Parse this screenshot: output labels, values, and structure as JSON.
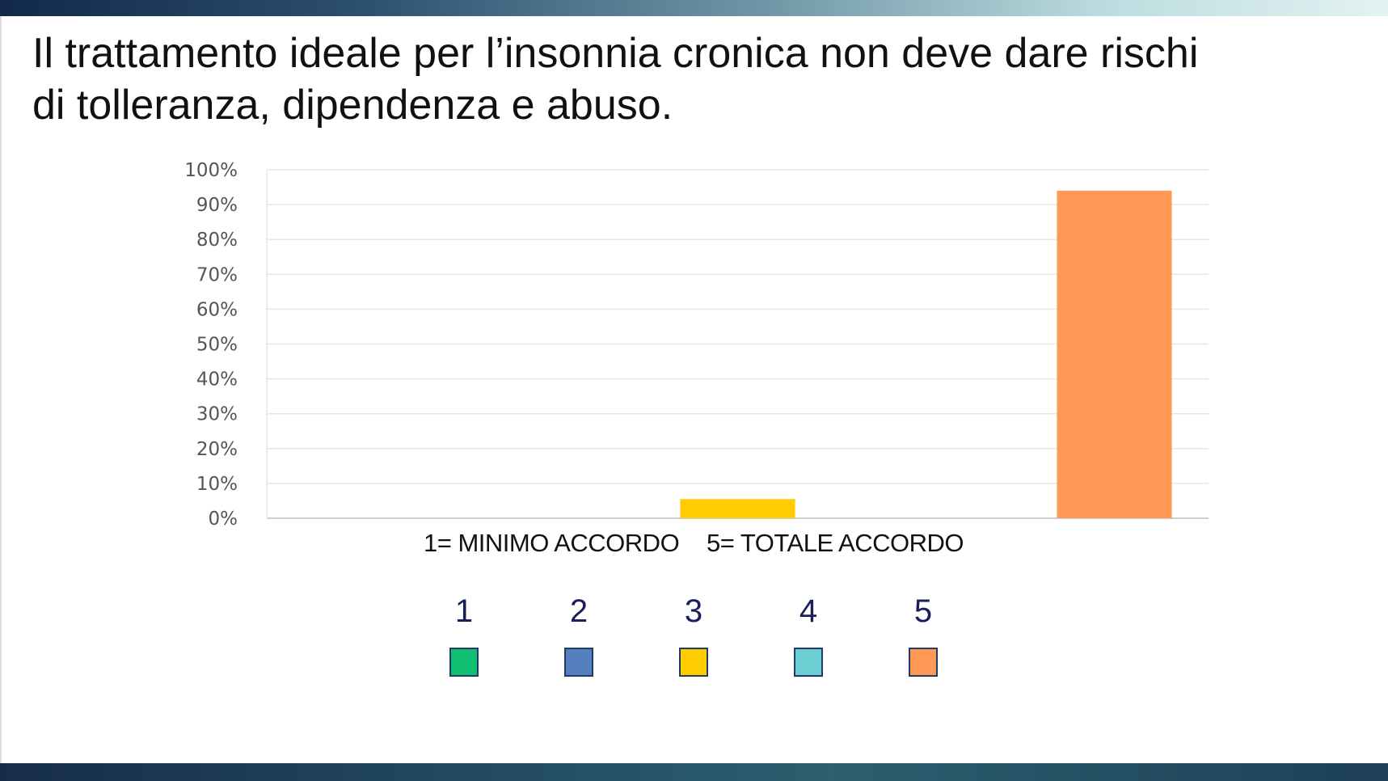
{
  "slide": {
    "title_line1": "Il trattamento ideale per l’insonnia cronica non deve dare rischi",
    "title_line2": "di tolleranza, dipendenza e abuso.",
    "scale_min": "1= MINIMO ACCORDO",
    "scale_max": "5= TOTALE ACCORDO"
  },
  "legend": [
    {
      "label": "1",
      "color": "#10c070"
    },
    {
      "label": "2",
      "color": "#5580c0"
    },
    {
      "label": "3",
      "color": "#ffcc00"
    },
    {
      "label": "4",
      "color": "#6ccfd2"
    },
    {
      "label": "5",
      "color": "#ff9955"
    }
  ],
  "chart_data": {
    "type": "bar",
    "categories": [
      "1",
      "2",
      "3",
      "4",
      "5"
    ],
    "values": [
      0,
      0,
      5.5,
      0,
      94
    ],
    "colors": [
      "#10c070",
      "#5580c0",
      "#ffcc00",
      "#6ccfd2",
      "#ff9955"
    ],
    "ylim": [
      0,
      100
    ],
    "yticks": [
      0,
      10,
      20,
      30,
      40,
      50,
      60,
      70,
      80,
      90,
      100
    ],
    "ytick_labels": [
      "0%",
      "10%",
      "20%",
      "30%",
      "40%",
      "50%",
      "60%",
      "70%",
      "80%",
      "90%",
      "100%"
    ],
    "grid": true,
    "legend_position": "bottom"
  }
}
